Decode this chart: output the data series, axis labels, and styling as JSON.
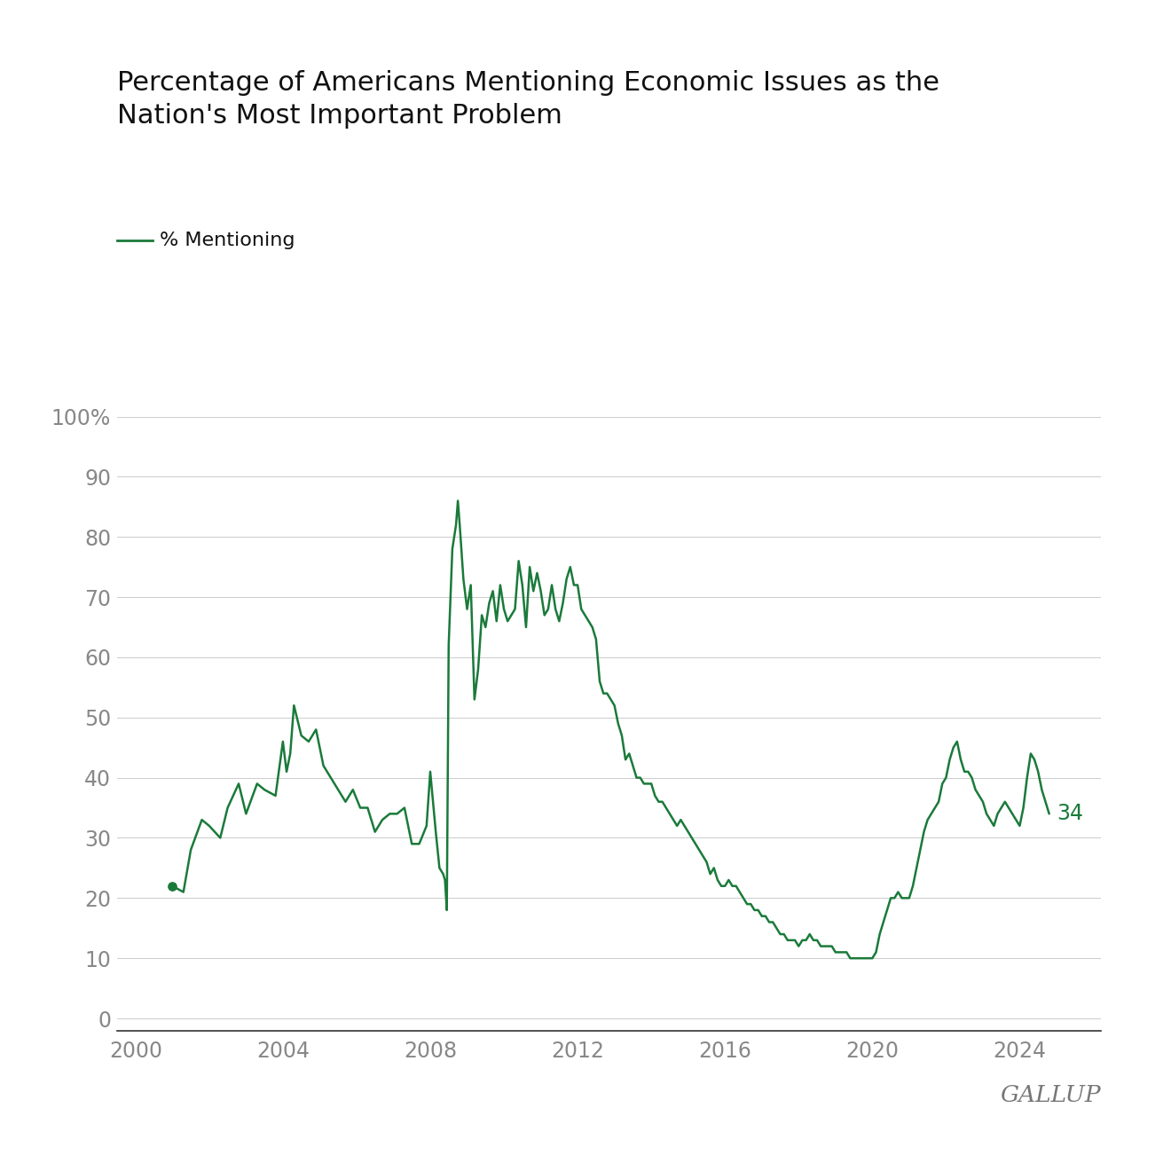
{
  "title": "Percentage of Americans Mentioning Economic Issues as the\nNation's Most Important Problem",
  "legend_label": "% Mentioning",
  "line_color": "#1a7a3a",
  "background_color": "#ffffff",
  "grid_color": "#cccccc",
  "title_fontsize": 22,
  "gallup_text": "GALLUP",
  "end_label": "34",
  "yticks": [
    0,
    10,
    20,
    30,
    40,
    50,
    60,
    70,
    80,
    90,
    100
  ],
  "ytick_labels": [
    "0",
    "10",
    "20",
    "30",
    "40",
    "50",
    "60",
    "70",
    "80",
    "90",
    "100%"
  ],
  "xticks": [
    2000,
    2004,
    2008,
    2012,
    2016,
    2020,
    2024
  ],
  "xlim": [
    1999.5,
    2026.2
  ],
  "ylim": [
    -2,
    105
  ],
  "data": [
    [
      2001.0,
      22
    ],
    [
      2001.3,
      21
    ],
    [
      2001.5,
      28
    ],
    [
      2001.8,
      33
    ],
    [
      2002.0,
      32
    ],
    [
      2002.3,
      30
    ],
    [
      2002.5,
      35
    ],
    [
      2002.8,
      39
    ],
    [
      2003.0,
      34
    ],
    [
      2003.3,
      39
    ],
    [
      2003.5,
      38
    ],
    [
      2003.8,
      37
    ],
    [
      2004.0,
      46
    ],
    [
      2004.1,
      41
    ],
    [
      2004.2,
      44
    ],
    [
      2004.3,
      52
    ],
    [
      2004.5,
      47
    ],
    [
      2004.7,
      46
    ],
    [
      2004.9,
      48
    ],
    [
      2005.1,
      42
    ],
    [
      2005.3,
      40
    ],
    [
      2005.5,
      38
    ],
    [
      2005.7,
      36
    ],
    [
      2005.9,
      38
    ],
    [
      2006.1,
      35
    ],
    [
      2006.3,
      35
    ],
    [
      2006.5,
      31
    ],
    [
      2006.7,
      33
    ],
    [
      2006.9,
      34
    ],
    [
      2007.1,
      34
    ],
    [
      2007.3,
      35
    ],
    [
      2007.5,
      29
    ],
    [
      2007.7,
      29
    ],
    [
      2007.9,
      32
    ],
    [
      2008.0,
      41
    ],
    [
      2008.15,
      31
    ],
    [
      2008.25,
      25
    ],
    [
      2008.35,
      24
    ],
    [
      2008.4,
      23
    ],
    [
      2008.45,
      18
    ],
    [
      2008.5,
      62
    ],
    [
      2008.6,
      78
    ],
    [
      2008.7,
      82
    ],
    [
      2008.75,
      86
    ],
    [
      2008.8,
      82
    ],
    [
      2008.9,
      73
    ],
    [
      2009.0,
      68
    ],
    [
      2009.1,
      72
    ],
    [
      2009.2,
      53
    ],
    [
      2009.3,
      58
    ],
    [
      2009.4,
      67
    ],
    [
      2009.5,
      65
    ],
    [
      2009.6,
      69
    ],
    [
      2009.7,
      71
    ],
    [
      2009.8,
      66
    ],
    [
      2009.9,
      72
    ],
    [
      2010.0,
      68
    ],
    [
      2010.1,
      66
    ],
    [
      2010.2,
      67
    ],
    [
      2010.3,
      68
    ],
    [
      2010.4,
      76
    ],
    [
      2010.5,
      72
    ],
    [
      2010.6,
      65
    ],
    [
      2010.7,
      75
    ],
    [
      2010.8,
      71
    ],
    [
      2010.9,
      74
    ],
    [
      2011.0,
      71
    ],
    [
      2011.1,
      67
    ],
    [
      2011.2,
      68
    ],
    [
      2011.3,
      72
    ],
    [
      2011.4,
      68
    ],
    [
      2011.5,
      66
    ],
    [
      2011.6,
      69
    ],
    [
      2011.7,
      73
    ],
    [
      2011.8,
      75
    ],
    [
      2011.9,
      72
    ],
    [
      2012.0,
      72
    ],
    [
      2012.1,
      68
    ],
    [
      2012.2,
      67
    ],
    [
      2012.3,
      66
    ],
    [
      2012.4,
      65
    ],
    [
      2012.5,
      63
    ],
    [
      2012.6,
      56
    ],
    [
      2012.7,
      54
    ],
    [
      2012.8,
      54
    ],
    [
      2012.9,
      53
    ],
    [
      2013.0,
      52
    ],
    [
      2013.1,
      49
    ],
    [
      2013.2,
      47
    ],
    [
      2013.3,
      43
    ],
    [
      2013.4,
      44
    ],
    [
      2013.5,
      42
    ],
    [
      2013.6,
      40
    ],
    [
      2013.7,
      40
    ],
    [
      2013.8,
      39
    ],
    [
      2013.9,
      39
    ],
    [
      2014.0,
      39
    ],
    [
      2014.1,
      37
    ],
    [
      2014.2,
      36
    ],
    [
      2014.3,
      36
    ],
    [
      2014.4,
      35
    ],
    [
      2014.5,
      34
    ],
    [
      2014.6,
      33
    ],
    [
      2014.7,
      32
    ],
    [
      2014.8,
      33
    ],
    [
      2014.9,
      32
    ],
    [
      2015.0,
      31
    ],
    [
      2015.1,
      30
    ],
    [
      2015.2,
      29
    ],
    [
      2015.3,
      28
    ],
    [
      2015.4,
      27
    ],
    [
      2015.5,
      26
    ],
    [
      2015.6,
      24
    ],
    [
      2015.7,
      25
    ],
    [
      2015.8,
      23
    ],
    [
      2015.9,
      22
    ],
    [
      2016.0,
      22
    ],
    [
      2016.1,
      23
    ],
    [
      2016.2,
      22
    ],
    [
      2016.3,
      22
    ],
    [
      2016.4,
      21
    ],
    [
      2016.5,
      20
    ],
    [
      2016.6,
      19
    ],
    [
      2016.7,
      19
    ],
    [
      2016.8,
      18
    ],
    [
      2016.9,
      18
    ],
    [
      2017.0,
      17
    ],
    [
      2017.1,
      17
    ],
    [
      2017.2,
      16
    ],
    [
      2017.3,
      16
    ],
    [
      2017.4,
      15
    ],
    [
      2017.5,
      14
    ],
    [
      2017.6,
      14
    ],
    [
      2017.7,
      13
    ],
    [
      2017.8,
      13
    ],
    [
      2017.9,
      13
    ],
    [
      2018.0,
      12
    ],
    [
      2018.1,
      13
    ],
    [
      2018.2,
      13
    ],
    [
      2018.3,
      14
    ],
    [
      2018.4,
      13
    ],
    [
      2018.5,
      13
    ],
    [
      2018.6,
      12
    ],
    [
      2018.7,
      12
    ],
    [
      2018.8,
      12
    ],
    [
      2018.9,
      12
    ],
    [
      2019.0,
      11
    ],
    [
      2019.1,
      11
    ],
    [
      2019.2,
      11
    ],
    [
      2019.3,
      11
    ],
    [
      2019.4,
      10
    ],
    [
      2019.5,
      10
    ],
    [
      2019.6,
      10
    ],
    [
      2019.7,
      10
    ],
    [
      2019.8,
      10
    ],
    [
      2019.9,
      10
    ],
    [
      2020.0,
      10
    ],
    [
      2020.1,
      11
    ],
    [
      2020.2,
      14
    ],
    [
      2020.3,
      16
    ],
    [
      2020.4,
      18
    ],
    [
      2020.5,
      20
    ],
    [
      2020.6,
      20
    ],
    [
      2020.7,
      21
    ],
    [
      2020.8,
      20
    ],
    [
      2020.9,
      20
    ],
    [
      2021.0,
      20
    ],
    [
      2021.1,
      22
    ],
    [
      2021.2,
      25
    ],
    [
      2021.3,
      28
    ],
    [
      2021.4,
      31
    ],
    [
      2021.5,
      33
    ],
    [
      2021.6,
      34
    ],
    [
      2021.7,
      35
    ],
    [
      2021.8,
      36
    ],
    [
      2021.9,
      39
    ],
    [
      2022.0,
      40
    ],
    [
      2022.1,
      43
    ],
    [
      2022.2,
      45
    ],
    [
      2022.3,
      46
    ],
    [
      2022.4,
      43
    ],
    [
      2022.5,
      41
    ],
    [
      2022.6,
      41
    ],
    [
      2022.7,
      40
    ],
    [
      2022.8,
      38
    ],
    [
      2022.9,
      37
    ],
    [
      2023.0,
      36
    ],
    [
      2023.1,
      34
    ],
    [
      2023.2,
      33
    ],
    [
      2023.3,
      32
    ],
    [
      2023.4,
      34
    ],
    [
      2023.5,
      35
    ],
    [
      2023.6,
      36
    ],
    [
      2023.7,
      35
    ],
    [
      2023.8,
      34
    ],
    [
      2023.9,
      33
    ],
    [
      2024.0,
      32
    ],
    [
      2024.1,
      35
    ],
    [
      2024.2,
      40
    ],
    [
      2024.3,
      44
    ],
    [
      2024.4,
      43
    ],
    [
      2024.5,
      41
    ],
    [
      2024.6,
      38
    ],
    [
      2024.7,
      36
    ],
    [
      2024.8,
      34
    ]
  ]
}
